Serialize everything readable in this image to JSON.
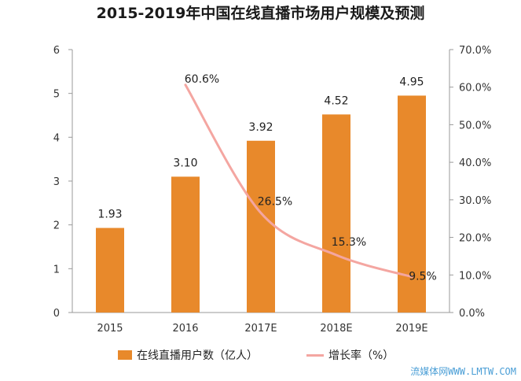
{
  "title": "2015-2019年中国在线直播市场用户规模及预测",
  "watermark": "流媒体网WWW.LMTW.COM",
  "chart_data": {
    "type": "bar",
    "categories": [
      "2015",
      "2016",
      "2017E",
      "2018E",
      "2019E"
    ],
    "series": [
      {
        "name": "在线直播用户数（亿人）",
        "type": "bar",
        "axis": "left",
        "values": [
          1.93,
          3.1,
          3.92,
          4.52,
          4.95
        ],
        "labels": [
          "1.93",
          "3.10",
          "3.92",
          "4.52",
          "4.95"
        ],
        "color": "#E8892B"
      },
      {
        "name": "增长率（%）",
        "type": "line",
        "axis": "right",
        "values": [
          null,
          60.6,
          26.5,
          15.3,
          9.5
        ],
        "labels": [
          "",
          "60.6%",
          "26.5%",
          "15.3%",
          "9.5%"
        ],
        "color": "#F4A6A1"
      }
    ],
    "ylim_left": [
      0,
      6
    ],
    "ylim_right": [
      0,
      70
    ],
    "yticks_left": [
      "0",
      "1",
      "2",
      "3",
      "4",
      "5",
      "6"
    ],
    "yticks_right": [
      "0.0%",
      "10.0%",
      "20.0%",
      "30.0%",
      "40.0%",
      "50.0%",
      "60.0%",
      "70.0%"
    ],
    "grid": false,
    "legend_position": "bottom"
  }
}
